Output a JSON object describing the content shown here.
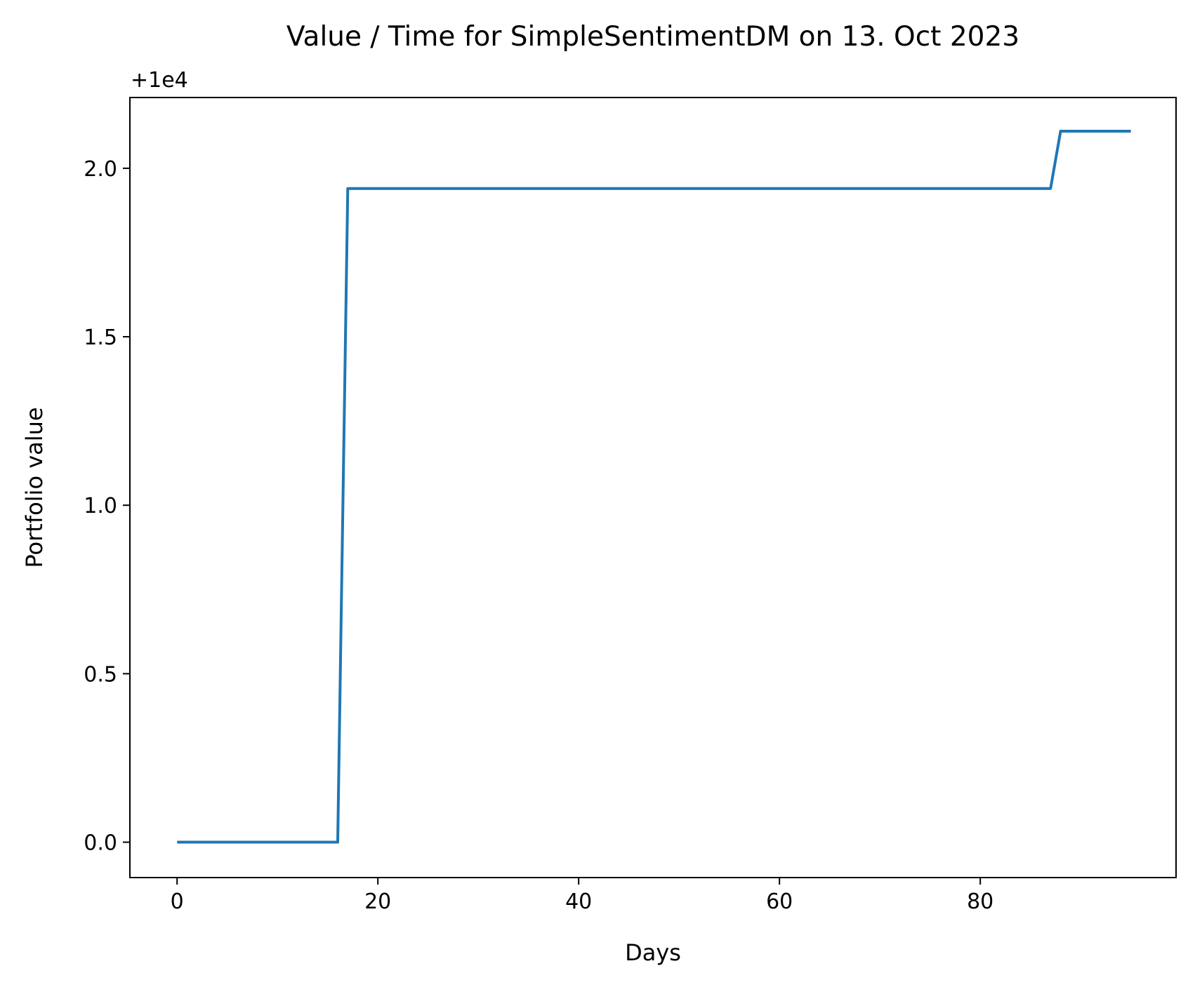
{
  "chart_data": {
    "type": "line",
    "title": "Value / Time for SimpleSentimentDM on 13. Oct 2023",
    "xlabel": "Days",
    "ylabel": "Portfolio value",
    "y_offset_label": "+1e4",
    "xlim": [
      -4.7,
      99.5
    ],
    "ylim": [
      -0.105,
      2.21
    ],
    "xticks": [
      {
        "value": 0,
        "label": "0"
      },
      {
        "value": 20,
        "label": "20"
      },
      {
        "value": 40,
        "label": "40"
      },
      {
        "value": 60,
        "label": "60"
      },
      {
        "value": 80,
        "label": "80"
      }
    ],
    "yticks": [
      {
        "value": 0.0,
        "label": "0.0"
      },
      {
        "value": 0.5,
        "label": "0.5"
      },
      {
        "value": 1.0,
        "label": "1.0"
      },
      {
        "value": 1.5,
        "label": "1.5"
      },
      {
        "value": 2.0,
        "label": "2.0"
      }
    ],
    "grid": false,
    "series": [
      {
        "color": "#1f77b4",
        "x": [
          0,
          16,
          17,
          87,
          88,
          95
        ],
        "y": [
          0.0,
          0.0,
          1.94,
          1.94,
          2.11,
          2.11
        ]
      }
    ]
  }
}
